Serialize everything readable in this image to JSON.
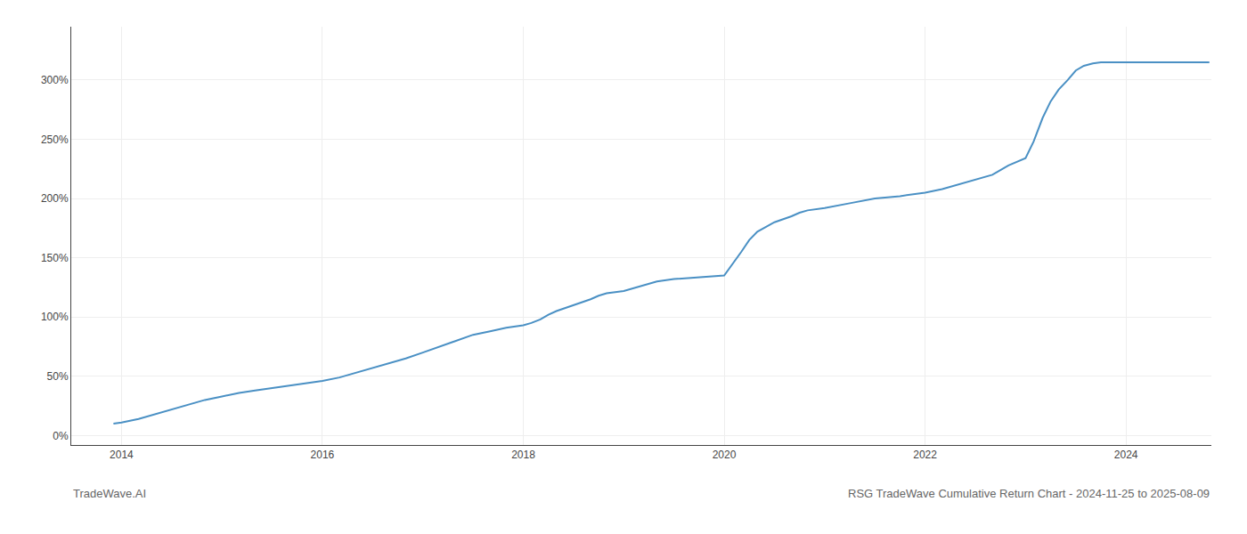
{
  "chart_data": {
    "type": "line",
    "title": "RSG TradeWave Cumulative Return Chart - 2024-11-25 to 2025-08-09",
    "annotations": [
      "TradeWave.AI"
    ],
    "color": "#4a90c4",
    "grid": true,
    "x": [
      2013.92,
      2014.0,
      2014.17,
      2014.33,
      2014.5,
      2014.67,
      2014.83,
      2015.0,
      2015.17,
      2015.33,
      2015.5,
      2015.67,
      2015.83,
      2016.0,
      2016.17,
      2016.33,
      2016.5,
      2016.67,
      2016.83,
      2017.0,
      2017.17,
      2017.33,
      2017.5,
      2017.67,
      2017.83,
      2018.0,
      2018.08,
      2018.17,
      2018.25,
      2018.33,
      2018.5,
      2018.67,
      2018.75,
      2018.83,
      2019.0,
      2019.08,
      2019.17,
      2019.25,
      2019.33,
      2019.5,
      2019.67,
      2019.83,
      2020.0,
      2020.17,
      2020.25,
      2020.33,
      2020.5,
      2020.67,
      2020.75,
      2020.83,
      2021.0,
      2021.25,
      2021.5,
      2021.75,
      2022.0,
      2022.17,
      2022.33,
      2022.5,
      2022.67,
      2022.75,
      2022.83,
      2023.0,
      2023.08,
      2023.17,
      2023.25,
      2023.33,
      2023.42,
      2023.5,
      2023.58,
      2023.67,
      2023.75,
      2023.83,
      2023.92,
      2024.0,
      2024.17,
      2024.33,
      2024.5,
      2024.67,
      2024.83
    ],
    "values": [
      10,
      11,
      14,
      18,
      22,
      26,
      30,
      33,
      36,
      38,
      40,
      42,
      44,
      46,
      49,
      53,
      57,
      61,
      65,
      70,
      75,
      80,
      85,
      88,
      91,
      93,
      95,
      98,
      102,
      105,
      110,
      115,
      118,
      120,
      122,
      124,
      126,
      128,
      130,
      132,
      133,
      134,
      135,
      155,
      165,
      172,
      180,
      185,
      188,
      190,
      192,
      196,
      200,
      202,
      205,
      208,
      212,
      216,
      220,
      224,
      228,
      234,
      248,
      268,
      282,
      292,
      300,
      308,
      312,
      314,
      315,
      315,
      315,
      315,
      315,
      315,
      315,
      315,
      315
    ],
    "xlim": [
      2013.5,
      2024.85
    ],
    "xticks": [
      2014,
      2016,
      2018,
      2020,
      2022,
      2024
    ],
    "ylim": [
      -8,
      345
    ],
    "yticks": [
      {
        "value": 0,
        "label": "0%"
      },
      {
        "value": 50,
        "label": "50%"
      },
      {
        "value": 100,
        "label": "100%"
      },
      {
        "value": 150,
        "label": "150%"
      },
      {
        "value": 200,
        "label": "200%"
      },
      {
        "value": 250,
        "label": "250%"
      },
      {
        "value": 300,
        "label": "300%"
      }
    ]
  }
}
